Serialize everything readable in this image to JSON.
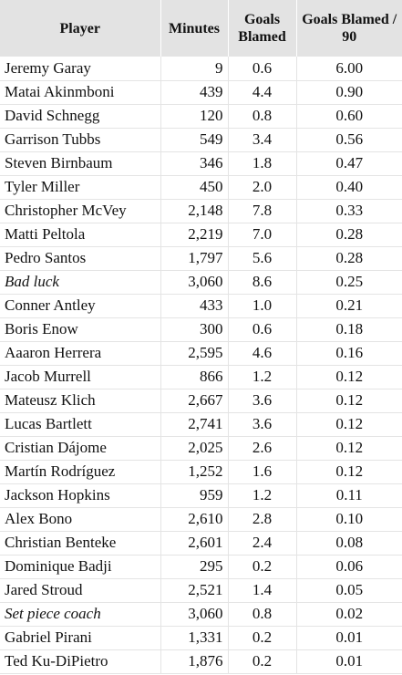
{
  "table": {
    "header": [
      "Player",
      "Minutes",
      "Goals Blamed",
      "Goals Blamed / 90"
    ],
    "rows": [
      {
        "cells": [
          "Jeremy Garay",
          "9",
          "0.6",
          "6.00"
        ]
      },
      {
        "cells": [
          "Matai Akinmboni",
          "439",
          "4.4",
          "0.90"
        ]
      },
      {
        "cells": [
          "David Schnegg",
          "120",
          "0.8",
          "0.60"
        ]
      },
      {
        "cells": [
          "Garrison Tubbs",
          "549",
          "3.4",
          "0.56"
        ]
      },
      {
        "cells": [
          "Steven Birnbaum",
          "346",
          "1.8",
          "0.47"
        ]
      },
      {
        "cells": [
          "Tyler Miller",
          "450",
          "2.0",
          "0.40"
        ]
      },
      {
        "cells": [
          "Christopher McVey",
          "2,148",
          "7.8",
          "0.33"
        ]
      },
      {
        "cells": [
          "Matti Peltola",
          "2,219",
          "7.0",
          "0.28"
        ]
      },
      {
        "cells": [
          "Pedro Santos",
          "1,797",
          "5.6",
          "0.28"
        ]
      },
      {
        "cells": [
          "Bad luck",
          "3,060",
          "8.6",
          "0.25"
        ],
        "italic": true
      },
      {
        "cells": [
          "Conner Antley",
          "433",
          "1.0",
          "0.21"
        ]
      },
      {
        "cells": [
          "Boris Enow",
          "300",
          "0.6",
          "0.18"
        ]
      },
      {
        "cells": [
          "Aaaron Herrera",
          "2,595",
          "4.6",
          "0.16"
        ]
      },
      {
        "cells": [
          "Jacob Murrell",
          "866",
          "1.2",
          "0.12"
        ]
      },
      {
        "cells": [
          "Mateusz Klich",
          "2,667",
          "3.6",
          "0.12"
        ]
      },
      {
        "cells": [
          "Lucas Bartlett",
          "2,741",
          "3.6",
          "0.12"
        ]
      },
      {
        "cells": [
          "Cristian Dájome",
          "2,025",
          "2.6",
          "0.12"
        ]
      },
      {
        "cells": [
          "Martín Rodríguez",
          "1,252",
          "1.6",
          "0.12"
        ]
      },
      {
        "cells": [
          "Jackson Hopkins",
          "959",
          "1.2",
          "0.11"
        ]
      },
      {
        "cells": [
          "Alex Bono",
          "2,610",
          "2.8",
          "0.10"
        ]
      },
      {
        "cells": [
          "Christian Benteke",
          "2,601",
          "2.4",
          "0.08"
        ]
      },
      {
        "cells": [
          "Dominique Badji",
          "295",
          "0.2",
          "0.06"
        ]
      },
      {
        "cells": [
          "Jared Stroud",
          "2,521",
          "1.4",
          "0.05"
        ]
      },
      {
        "cells": [
          "Set piece coach",
          "3,060",
          "0.8",
          "0.02"
        ],
        "italic": true
      },
      {
        "cells": [
          "Gabriel Pirani",
          "1,331",
          "0.2",
          "0.01"
        ]
      },
      {
        "cells": [
          "Ted Ku-DiPietro",
          "1,876",
          "0.2",
          "0.01"
        ]
      }
    ]
  }
}
